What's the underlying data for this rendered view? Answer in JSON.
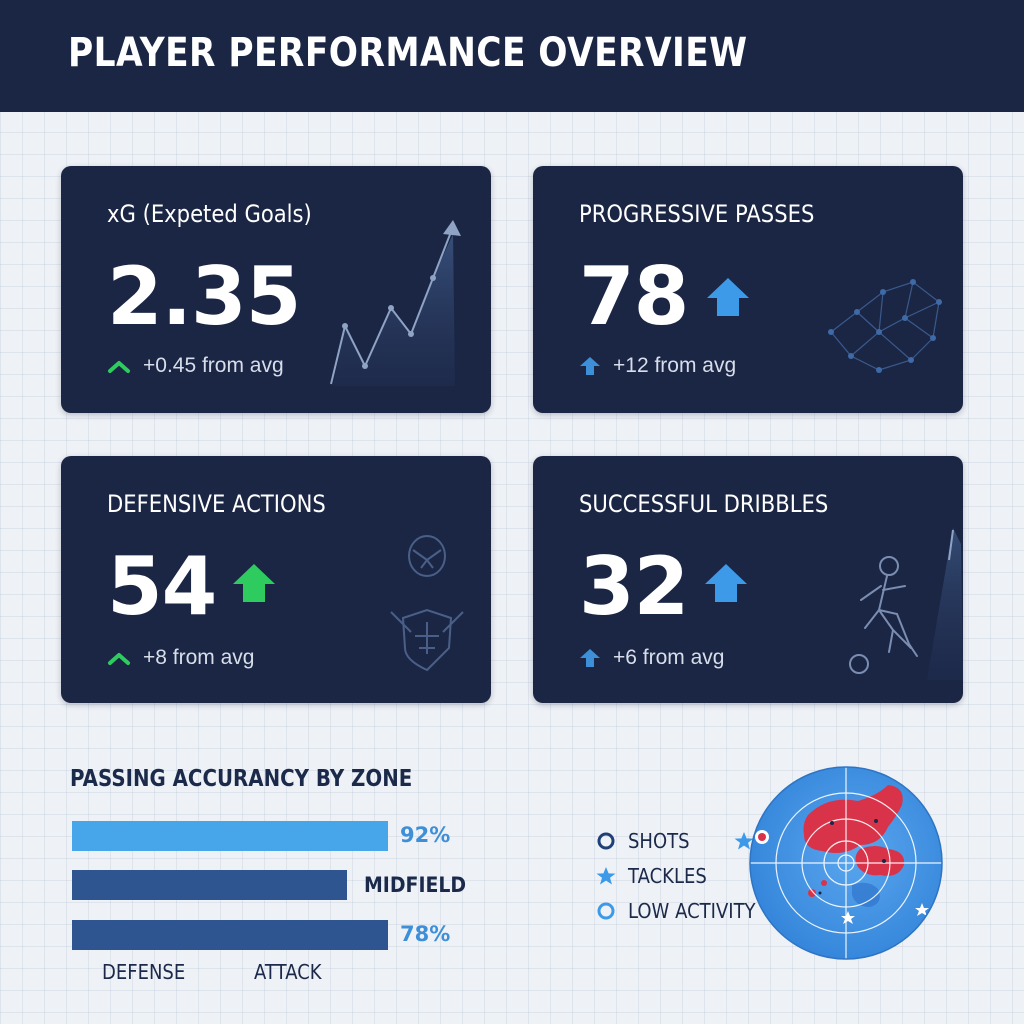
{
  "header": {
    "title": "PLAYER PERFORMANCE OVERVIEW"
  },
  "cards": [
    {
      "title": "xG (Expeted Goals)",
      "value": "2.35",
      "delta": "+0.45 from avg",
      "accent": "#2ecc5f"
    },
    {
      "title": "PROGRESSIVE PASSES",
      "value": "78",
      "delta": "+12 from avg",
      "accent": "#3d9ae8"
    },
    {
      "title": "DEFENSIVE ACTIONS",
      "value": "54",
      "delta": "+8 from avg",
      "accent": "#2ecc5f"
    },
    {
      "title": "SUCCESSFUL DRIBBLES",
      "value": "32",
      "delta": "+6 from avg",
      "accent": "#3d9ae8"
    }
  ],
  "passing": {
    "title": "PASSING ACCURANCY BY ZONE",
    "bars": [
      {
        "label": "92%",
        "color": "#47a6ea",
        "label_color": "#3d8fd8"
      },
      {
        "label": "MIDFIELD",
        "color": "#2f5590",
        "label_color": "#1b2a4a"
      },
      {
        "label": "78%",
        "color": "#2f5590",
        "label_color": "#3d8fd8"
      }
    ],
    "axis": [
      "DEFENSE",
      "ATTACK"
    ]
  },
  "legend": [
    {
      "label": "SHOTS",
      "icon": "ring-icon"
    },
    {
      "label": "TACKLES",
      "icon": "star-icon"
    },
    {
      "label": "LOW ACTIVITY",
      "icon": "ring-light-icon"
    }
  ],
  "colors": {
    "navy": "#1b2645",
    "green": "#2ecc5f",
    "blue": "#3d9ae8",
    "heat": "#d9334a",
    "radar": "#3a8fe0"
  }
}
